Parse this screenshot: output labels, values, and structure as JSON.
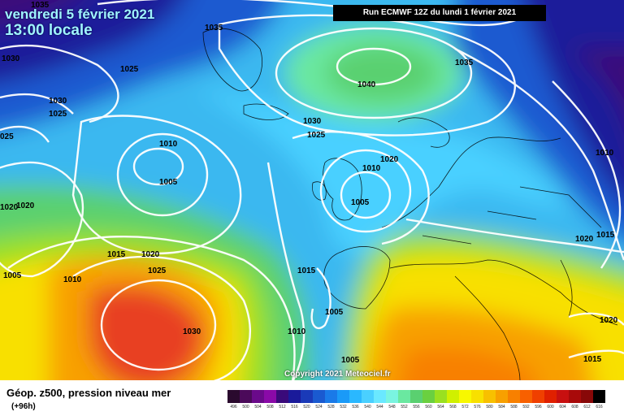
{
  "header": {
    "date_line": "vendredi 5 février 2021",
    "time_line": "13:00 locale",
    "run_label": "Run ECMWF 12Z du lundi 1 février 2021"
  },
  "copyright": "Copyright 2021 Meteociel.fr",
  "footer": {
    "title": "Géop. z500, pression niveau mer",
    "subtitle": "(+96h)"
  },
  "legend": {
    "scale_labels": [
      "496",
      "500",
      "504",
      "508",
      "512",
      "516",
      "520",
      "524",
      "528",
      "532",
      "536",
      "540",
      "544",
      "548",
      "552",
      "556",
      "560",
      "564",
      "568",
      "572",
      "576",
      "580",
      "584",
      "588",
      "592",
      "596",
      "600",
      "604",
      "608",
      "612",
      "616"
    ],
    "scale_colors": [
      "#2a0a2e",
      "#4b0a5a",
      "#6a0a8a",
      "#8a0aa8",
      "#3a0a7a",
      "#1a1a9a",
      "#1a3ab8",
      "#1a5ad0",
      "#1a7ae8",
      "#1a9af8",
      "#2ab8ff",
      "#4ad0ff",
      "#6ae8ff",
      "#7af4e0",
      "#6ae8a0",
      "#5ad070",
      "#6ad040",
      "#9ae020",
      "#d0f000",
      "#f8f800",
      "#f8e000",
      "#f8c000",
      "#f8a000",
      "#f88000",
      "#f86000",
      "#f04000",
      "#e02000",
      "#c81010",
      "#a80a0a",
      "#880808",
      "#000000"
    ]
  },
  "isobar_labels": [
    {
      "text": "1035"
    },
    {
      "text": "1030"
    },
    {
      "text": "1025"
    },
    {
      "text": "1030"
    },
    {
      "text": "1025"
    },
    {
      "text": "025"
    },
    {
      "text": "1035"
    },
    {
      "text": "1040"
    },
    {
      "text": "1035"
    },
    {
      "text": "1030"
    },
    {
      "text": "1025"
    },
    {
      "text": "1020"
    },
    {
      "text": "1010"
    },
    {
      "text": "1005"
    },
    {
      "text": "1010"
    },
    {
      "text": "1005"
    },
    {
      "text": "1020"
    },
    {
      "text": "1020"
    },
    {
      "text": "1010"
    },
    {
      "text": "1015"
    },
    {
      "text": "1020"
    },
    {
      "text": "1025"
    },
    {
      "text": "1005"
    },
    {
      "text": "1010"
    },
    {
      "text": "1015"
    },
    {
      "text": "1005"
    },
    {
      "text": "1010"
    },
    {
      "text": "1030"
    },
    {
      "text": "1005"
    },
    {
      "text": "1020"
    },
    {
      "text": "1015"
    },
    {
      "text": "1020"
    },
    {
      "text": "1015"
    }
  ]
}
